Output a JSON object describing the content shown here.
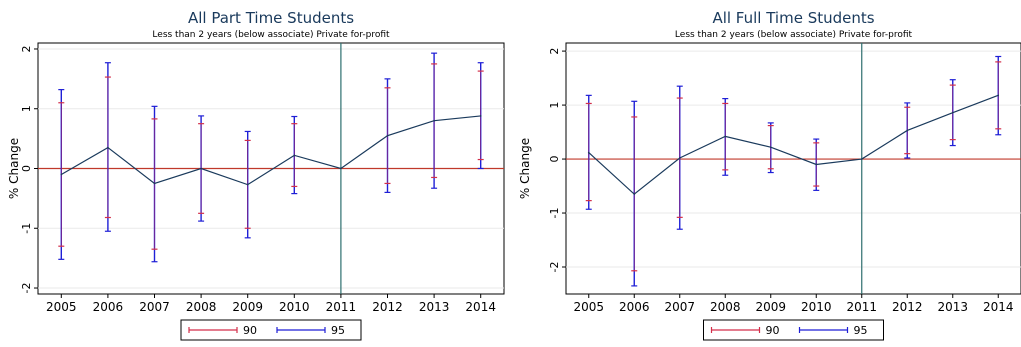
{
  "colors": {
    "ci90": "#d32f4a",
    "ci95": "#1f1fd6",
    "point_line": "#1a3a5c",
    "zero_line": "#c0392b",
    "ref_line": "#2e6f6f",
    "grid": "#eaeaea",
    "title": "#1a3a5c"
  },
  "chart_data": [
    {
      "type": "line",
      "title": "All Part Time Students",
      "subtitle": "Less than 2 years (below associate) Private for-profit",
      "xlabel": "",
      "ylabel": "% Change",
      "x": [
        2005,
        2006,
        2007,
        2008,
        2009,
        2010,
        2011,
        2012,
        2013,
        2014
      ],
      "xticks": [
        "2005",
        "2006",
        "2007",
        "2008",
        "2009",
        "2010",
        "2011",
        "2012",
        "2013",
        "2014"
      ],
      "yticks": [
        "-2",
        "-1",
        "0",
        "1",
        "2"
      ],
      "ytick_values": [
        -2,
        -1,
        0,
        1,
        2
      ],
      "ylim": [
        -2.1,
        2.1
      ],
      "grid": true,
      "reference_line_x": 2011,
      "zero_line_y": 0,
      "estimate": [
        -0.1,
        0.35,
        -0.25,
        0.0,
        -0.27,
        0.22,
        0.0,
        0.55,
        0.8,
        0.88
      ],
      "ci90": [
        [
          -1.3,
          1.1
        ],
        [
          -0.82,
          1.53
        ],
        [
          -1.35,
          0.83
        ],
        [
          -0.75,
          0.75
        ],
        [
          -1.0,
          0.47
        ],
        [
          -0.3,
          0.75
        ],
        [
          0.0,
          0.0
        ],
        [
          -0.25,
          1.35
        ],
        [
          -0.15,
          1.75
        ],
        [
          0.15,
          1.63
        ]
      ],
      "ci95": [
        [
          -1.52,
          1.32
        ],
        [
          -1.05,
          1.77
        ],
        [
          -1.56,
          1.04
        ],
        [
          -0.88,
          0.88
        ],
        [
          -1.16,
          0.62
        ],
        [
          -0.42,
          0.87
        ],
        [
          0.0,
          0.0
        ],
        [
          -0.4,
          1.5
        ],
        [
          -0.33,
          1.93
        ],
        [
          0.0,
          1.77
        ]
      ],
      "legend": {
        "placement": "bottom",
        "entries": [
          "90",
          "95"
        ]
      }
    },
    {
      "type": "line",
      "title": "All Full Time Students",
      "subtitle": "Less than 2 years (below associate) Private for-profit",
      "xlabel": "",
      "ylabel": "% Change",
      "x": [
        2005,
        2006,
        2007,
        2008,
        2009,
        2010,
        2011,
        2012,
        2013,
        2014
      ],
      "xticks": [
        "2005",
        "2006",
        "2007",
        "2008",
        "2009",
        "2010",
        "2011",
        "2012",
        "2013",
        "2014"
      ],
      "yticks": [
        "-2",
        "-1",
        "0",
        "1",
        "2"
      ],
      "ytick_values": [
        -2,
        -1,
        0,
        1,
        2
      ],
      "ylim": [
        -2.5,
        2.15
      ],
      "grid": true,
      "reference_line_x": 2011,
      "zero_line_y": 0,
      "estimate": [
        0.12,
        -0.65,
        0.02,
        0.42,
        0.22,
        -0.1,
        0.0,
        0.53,
        0.86,
        1.18
      ],
      "ci90": [
        [
          -0.77,
          1.03
        ],
        [
          -2.07,
          0.78
        ],
        [
          -1.08,
          1.13
        ],
        [
          -0.2,
          1.03
        ],
        [
          -0.18,
          0.62
        ],
        [
          -0.5,
          0.3
        ],
        [
          0.0,
          0.0
        ],
        [
          0.1,
          0.96
        ],
        [
          0.36,
          1.37
        ],
        [
          0.56,
          1.8
        ]
      ],
      "ci95": [
        [
          -0.93,
          1.18
        ],
        [
          -2.35,
          1.07
        ],
        [
          -1.3,
          1.35
        ],
        [
          -0.3,
          1.12
        ],
        [
          -0.25,
          0.67
        ],
        [
          -0.58,
          0.37
        ],
        [
          0.0,
          0.0
        ],
        [
          0.02,
          1.04
        ],
        [
          0.25,
          1.47
        ],
        [
          0.45,
          1.9
        ]
      ],
      "legend": {
        "placement": "bottom",
        "entries": [
          "90",
          "95"
        ]
      }
    }
  ]
}
